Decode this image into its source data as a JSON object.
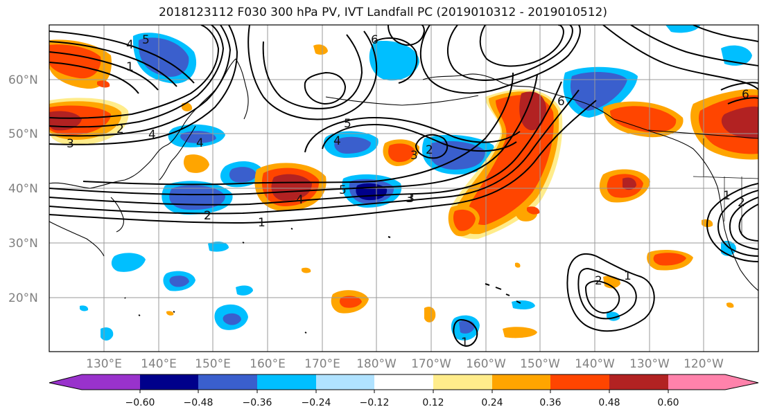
{
  "title": "2018123112 F030 300 hPa PV, IVT Landfall PC (2019010312 - 2019010512)",
  "map": {
    "lat_labels": [
      "60°N",
      "50°N",
      "40°N",
      "30°N",
      "20°N"
    ],
    "lon_labels": [
      "130°E",
      "140°E",
      "150°E",
      "160°E",
      "170°E",
      "180°W",
      "170°W",
      "160°W",
      "150°W",
      "140°W",
      "130°W",
      "120°W"
    ],
    "contour_labels": [
      "5",
      "4",
      "1",
      "2",
      "3",
      "4",
      "4",
      "5",
      "4",
      "6",
      "2",
      "3",
      "2",
      "3",
      "5",
      "4",
      "3",
      "2",
      "1",
      "6",
      "6",
      "1",
      "2",
      "1",
      "2",
      "1"
    ]
  },
  "colorbar": {
    "tick_labels": [
      "−0.60",
      "−0.48",
      "−0.36",
      "−0.24",
      "−0.12",
      "0.12",
      "0.24",
      "0.36",
      "0.48",
      "0.60"
    ],
    "colors": [
      "#9932cc",
      "#00008b",
      "#3a5fcd",
      "#00bfff",
      "#b0e2ff",
      "#ffffff",
      "#ffec8b",
      "#ffa500",
      "#ff4500",
      "#b22222",
      "#ff82ab"
    ]
  }
}
